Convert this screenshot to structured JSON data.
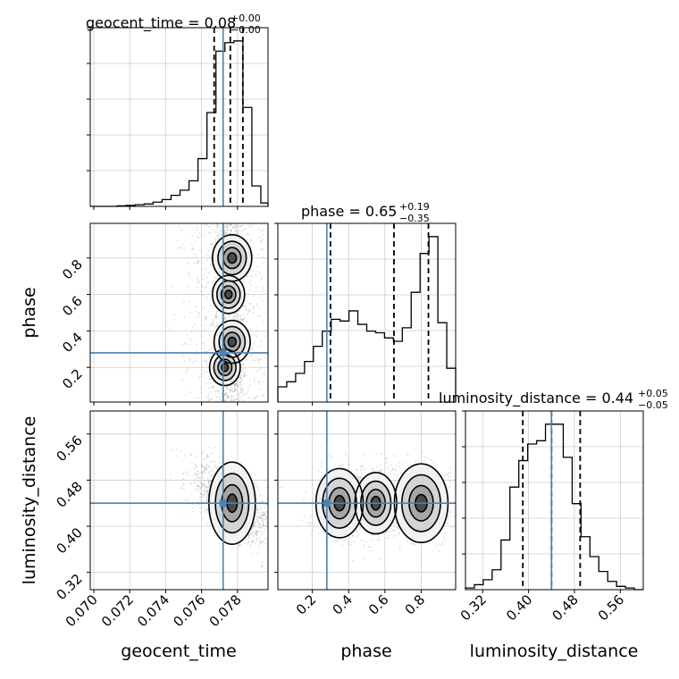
{
  "chart_data": {
    "type": "corner",
    "parameters": [
      "geocent_time",
      "phase",
      "luminosity_distance"
    ],
    "titles": [
      {
        "text": "geocent_time = 0.08",
        "plus": "+0.00",
        "minus": "−0.00"
      },
      {
        "text": "phase = 0.65",
        "plus": "+0.19",
        "minus": "−0.35"
      },
      {
        "text": "luminosity_distance = 0.44",
        "plus": "+0.05",
        "minus": "−0.05"
      }
    ],
    "ranges": {
      "geocent_time": [
        0.0698,
        0.0797
      ],
      "phase": [
        0.01,
        0.99
      ],
      "luminosity_distance": [
        0.29,
        0.6
      ]
    },
    "ticks": {
      "geocent_time": [
        "0.070",
        "0.072",
        "0.074",
        "0.076",
        "0.078"
      ],
      "phase": [
        "0.2",
        "0.4",
        "0.6",
        "0.8"
      ],
      "luminosity_distance": [
        "0.32",
        "0.40",
        "0.48",
        "0.56"
      ]
    },
    "truths": {
      "geocent_time": 0.0772,
      "phase": 0.28,
      "luminosity_distance": 0.44
    },
    "quantiles": {
      "geocent_time": [
        0.0767,
        0.0776,
        0.0783
      ],
      "phase": [
        0.3,
        0.65,
        0.84
      ],
      "luminosity_distance": [
        0.39,
        0.44,
        0.49
      ]
    },
    "marginals": {
      "geocent_time": {
        "edges": [
          0.0698,
          0.0703,
          0.0708,
          0.0713,
          0.0718,
          0.0723,
          0.0728,
          0.0733,
          0.0738,
          0.0743,
          0.0748,
          0.0753,
          0.0758,
          0.0763,
          0.0768,
          0.0773,
          0.0778,
          0.0783,
          0.0788,
          0.0793,
          0.0797
        ],
        "counts": [
          0,
          0,
          0,
          0.3,
          0.6,
          1,
          1.4,
          2.5,
          4,
          6.5,
          9.5,
          15,
          28,
          55,
          91,
          96,
          97,
          58,
          12,
          2
        ]
      },
      "phase": {
        "edges": [
          0.01,
          0.059,
          0.108,
          0.157,
          0.206,
          0.255,
          0.304,
          0.353,
          0.402,
          0.451,
          0.5,
          0.549,
          0.598,
          0.647,
          0.696,
          0.745,
          0.794,
          0.843,
          0.892,
          0.941,
          0.99
        ],
        "counts": [
          9,
          12,
          17,
          24,
          33,
          42,
          49,
          48,
          54,
          46,
          42,
          41,
          38,
          36,
          44,
          65,
          88,
          98,
          47,
          20
        ]
      },
      "luminosity_distance": {
        "edges": [
          0.29,
          0.3055,
          0.321,
          0.3365,
          0.352,
          0.3675,
          0.383,
          0.3985,
          0.414,
          0.4295,
          0.445,
          0.4605,
          0.476,
          0.4915,
          0.507,
          0.5225,
          0.538,
          0.5535,
          0.569,
          0.5845,
          0.6
        ],
        "counts": [
          1,
          3,
          6,
          12,
          30,
          62,
          78,
          88,
          90,
          100,
          100,
          80,
          52,
          32,
          20,
          11,
          5,
          2,
          1,
          0
        ]
      }
    },
    "density_modes": {
      "phase_vs_geocent_time": [
        {
          "x": 0.0777,
          "y": 0.8,
          "weight": 1.0
        },
        {
          "x": 0.0775,
          "y": 0.6,
          "weight": 0.55
        },
        {
          "x": 0.0777,
          "y": 0.34,
          "weight": 0.8
        },
        {
          "x": 0.0773,
          "y": 0.2,
          "weight": 0.45
        }
      ],
      "luminosity_distance_vs_geocent_time": [
        {
          "x": 0.0777,
          "y": 0.44,
          "weight": 1.0
        }
      ],
      "luminosity_distance_vs_phase": [
        {
          "x": 0.8,
          "y": 0.44,
          "weight": 1.0
        },
        {
          "x": 0.35,
          "y": 0.44,
          "weight": 0.7
        },
        {
          "x": 0.55,
          "y": 0.44,
          "weight": 0.45
        }
      ]
    }
  }
}
